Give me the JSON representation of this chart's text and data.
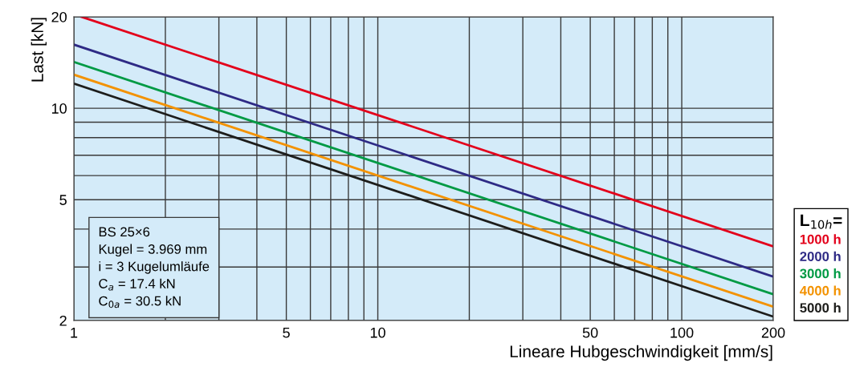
{
  "chart_data": {
    "type": "line",
    "xlabel": "Lineare Hubgeschwindigkeit [mm/s]",
    "ylabel": "Last [kN]",
    "legend_title": "L$_{10h}$=",
    "log": "xy",
    "grid": true,
    "legend": "right",
    "xlim": [
      1,
      200
    ],
    "ylim": [
      2,
      20
    ],
    "xticks": [
      1,
      {
        "value": 2,
        "label": null
      },
      {
        "value": 3,
        "label": null
      },
      {
        "value": 4,
        "label": null
      },
      5,
      {
        "value": 6,
        "label": null
      },
      {
        "value": 7,
        "label": null
      },
      {
        "value": 8,
        "label": null
      },
      {
        "value": 9,
        "label": null
      },
      10,
      {
        "value": 20,
        "label": null
      },
      {
        "value": 30,
        "label": null
      },
      {
        "value": 40,
        "label": null
      },
      50,
      {
        "value": 60,
        "label": null
      },
      {
        "value": 70,
        "label": null
      },
      {
        "value": 80,
        "label": null
      },
      {
        "value": 90,
        "label": null
      },
      100,
      200
    ],
    "yticks": [
      2,
      {
        "value": 3,
        "label": null
      },
      {
        "value": 4,
        "label": null
      },
      5,
      {
        "value": 6,
        "label": null
      },
      {
        "value": 7,
        "label": null
      },
      {
        "value": 8,
        "label": null
      },
      {
        "value": 9,
        "label": null
      },
      10,
      20
    ],
    "series": [
      {
        "name": "1000 h",
        "color": "#e3001b",
        "x": [
          1.06,
          200
        ],
        "values": [
          20,
          3.51
        ]
      },
      {
        "name": "2000 h",
        "color": "#2e2a85",
        "x": [
          1,
          200
        ],
        "values": [
          16.2,
          2.79
        ]
      },
      {
        "name": "3000 h",
        "color": "#009a44",
        "x": [
          1,
          200
        ],
        "values": [
          14.2,
          2.44
        ]
      },
      {
        "name": "4000 h",
        "color": "#f39200",
        "x": [
          1,
          200
        ],
        "values": [
          12.9,
          2.22
        ]
      },
      {
        "name": "5000 h",
        "color": "#1d1d1b",
        "x": [
          1,
          200
        ],
        "values": [
          12.05,
          2.06
        ]
      }
    ],
    "annotations": [
      "BS 25×6",
      "Kugel = 3.969 mm",
      "i = 3 Kugelumläufe",
      "C$_{a}$ = 17.4 kN",
      "C$_{0a}$ = 30.5 kN"
    ]
  }
}
